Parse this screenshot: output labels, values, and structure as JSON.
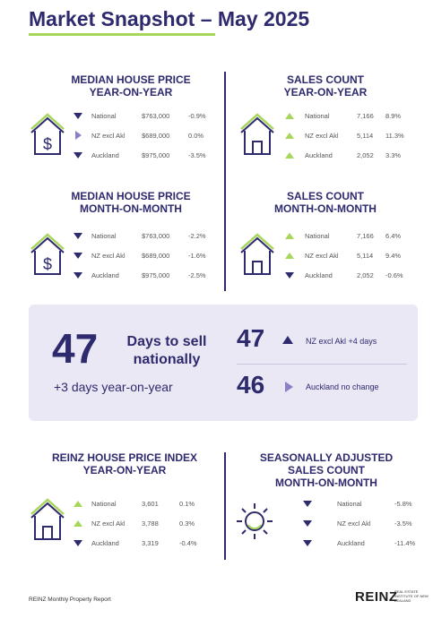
{
  "header": {
    "title": "Market Snapshot – May 2025"
  },
  "sections": {
    "median_yoy": {
      "title_line1": "MEDIAN HOUSE PRICE",
      "title_line2": "YEAR-ON-YEAR",
      "rows": [
        {
          "label": "National",
          "value": "$763,000",
          "change": "-0.9%",
          "direction": "down"
        },
        {
          "label": "NZ excl Akl",
          "value": "$689,000",
          "change": "0.0%",
          "direction": "flat"
        },
        {
          "label": "Auckland",
          "value": "$975,000",
          "change": "-3.5%",
          "direction": "down"
        }
      ]
    },
    "sales_yoy": {
      "title_line1": "SALES COUNT",
      "title_line2": "YEAR-ON-YEAR",
      "rows": [
        {
          "label": "National",
          "value": "7,166",
          "change": "8.9%",
          "direction": "up"
        },
        {
          "label": "NZ excl Akl",
          "value": "5,114",
          "change": "11.3%",
          "direction": "up"
        },
        {
          "label": "Auckland",
          "value": "2,052",
          "change": "3.3%",
          "direction": "up"
        }
      ]
    },
    "median_mom": {
      "title_line1": "MEDIAN HOUSE PRICE",
      "title_line2": "MONTH-ON-MONTH",
      "rows": [
        {
          "label": "National",
          "value": "$763,000",
          "change": "-2.2%",
          "direction": "down"
        },
        {
          "label": "NZ excl Akl",
          "value": "$689,000",
          "change": "-1.6%",
          "direction": "down"
        },
        {
          "label": "Auckland",
          "value": "$975,000",
          "change": "-2.5%",
          "direction": "down"
        }
      ]
    },
    "sales_mom": {
      "title_line1": "SALES COUNT",
      "title_line2": "MONTH-ON-MONTH",
      "rows": [
        {
          "label": "National",
          "value": "7,166",
          "change": "6.4%",
          "direction": "up"
        },
        {
          "label": "NZ excl Akl",
          "value": "5,114",
          "change": "9.4%",
          "direction": "up"
        },
        {
          "label": "Auckland",
          "value": "2,052",
          "change": "-0.6%",
          "direction": "down"
        }
      ]
    },
    "hpi_yoy": {
      "title_line1": "REINZ HOUSE PRICE INDEX",
      "title_line2": "YEAR-ON-YEAR",
      "rows": [
        {
          "label": "National",
          "value": "3,601",
          "change": "0.1%",
          "direction": "up"
        },
        {
          "label": "NZ excl Akl",
          "value": "3,788",
          "change": "0.3%",
          "direction": "up"
        },
        {
          "label": "Auckland",
          "value": "3,319",
          "change": "-0.4%",
          "direction": "down"
        }
      ]
    },
    "seasonal_mom": {
      "title_line1": "SEASONALLY ADJUSTED",
      "title_line2": "SALES COUNT",
      "title_line3": "MONTH-ON-MONTH",
      "rows": [
        {
          "label": "National",
          "change": "-5.8%",
          "direction": "down"
        },
        {
          "label": "NZ excl Akl",
          "change": "-3.5%",
          "direction": "down"
        },
        {
          "label": "Auckland",
          "change": "-11.4%",
          "direction": "down"
        }
      ]
    }
  },
  "days_to_sell": {
    "national_days": "47",
    "national_label_line1": "Days to sell",
    "national_label_line2": "nationally",
    "national_change": "+3  days year-on-year",
    "nz_excl_akl_days": "47",
    "nz_excl_akl_label": "NZ excl Akl +4 days",
    "auckland_days": "46",
    "auckland_label": "Auckland no change"
  },
  "footer": {
    "report_name": "REINZ Monthly Property Report",
    "logo": "REINZ",
    "logo_sub": "REAL ESTATE INSTITUTE OF NEW ZEALAND"
  },
  "colors": {
    "navy": "#2e2a6e",
    "green": "#a6d65a",
    "lavender": "#8a82c6",
    "panel": "#eae8f4"
  }
}
